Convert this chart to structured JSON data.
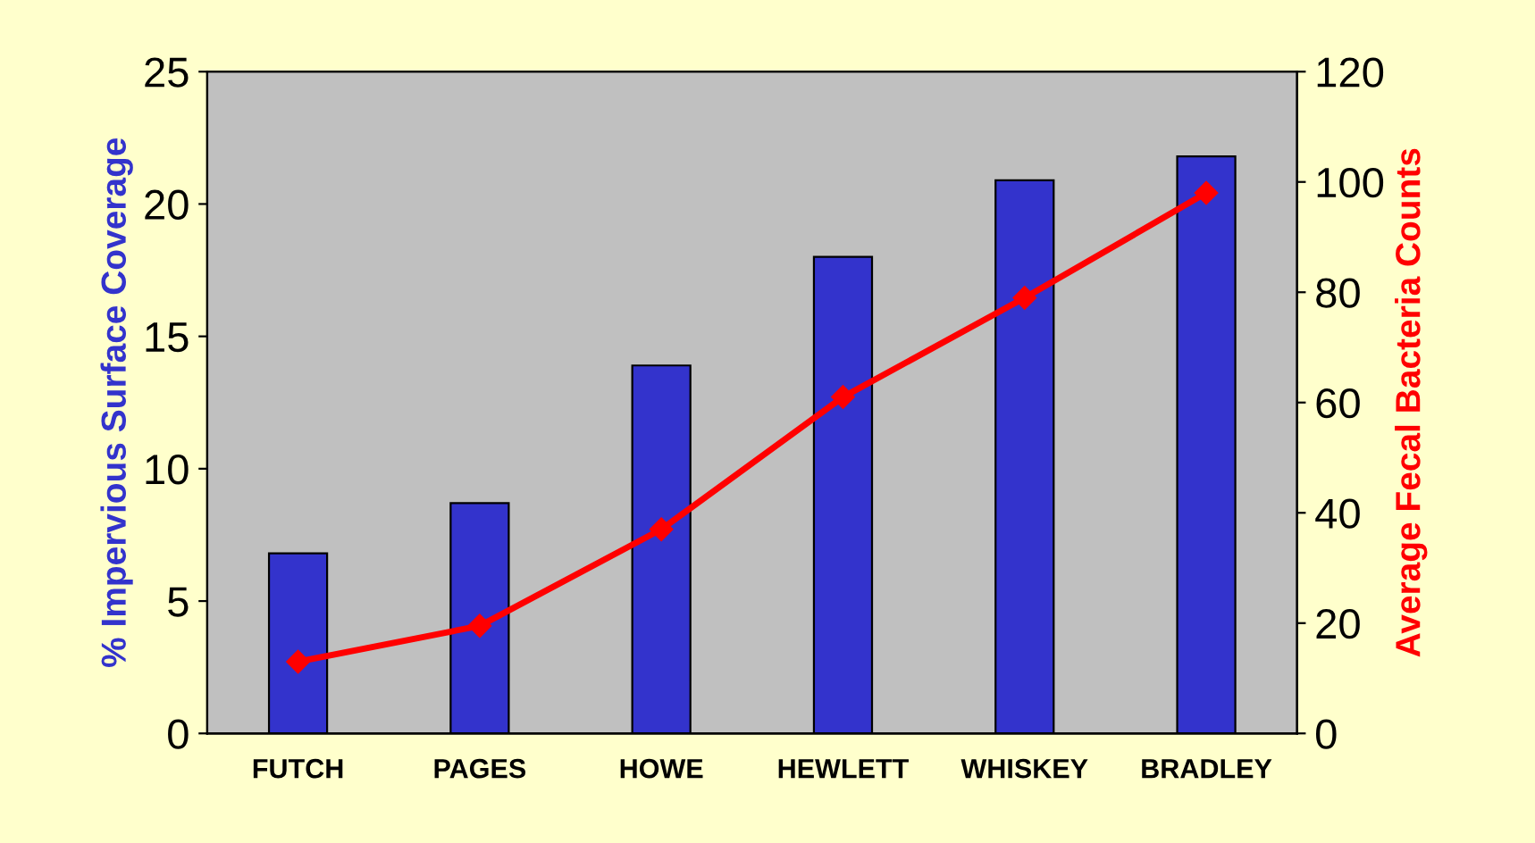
{
  "chart_data": {
    "type": "bar",
    "categories": [
      "FUTCH",
      "PAGES",
      "HOWE",
      "HEWLETT",
      "WHISKEY",
      "BRADLEY"
    ],
    "ylabel": "% Impervious Surface Coverage",
    "y2label": "Average Fecal Bacteria Counts",
    "series": [
      {
        "color": "#3333cc",
        "values": [
          6.8,
          8.7,
          13.9,
          18.0,
          20.9,
          21.8
        ]
      },
      {
        "type": "line",
        "axis": "y2",
        "color": "#ff0000",
        "marker": "diamond",
        "values": [
          13,
          19.5,
          37,
          61,
          79,
          98
        ]
      }
    ],
    "ylim": [
      0,
      25
    ],
    "yticks": [
      0,
      5,
      10,
      15,
      20,
      25
    ],
    "y2lim": [
      0,
      120
    ],
    "y2ticks": [
      0,
      20,
      40,
      60,
      80,
      100,
      120
    ],
    "grid": false,
    "legend": false
  }
}
